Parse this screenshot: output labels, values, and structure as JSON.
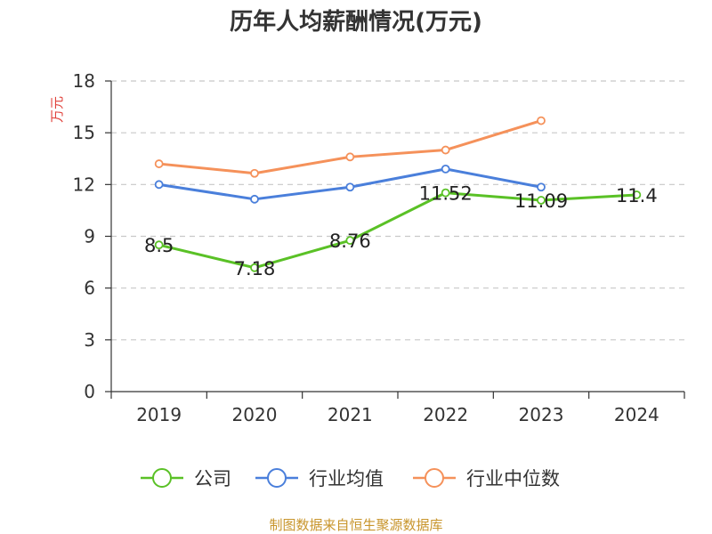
{
  "chart_data": {
    "type": "line",
    "title": "历年人均薪酬情况(万元)",
    "ylabel": "万元",
    "xlabel": "",
    "categories": [
      "2019",
      "2020",
      "2021",
      "2022",
      "2023",
      "2024"
    ],
    "yticks": [
      "0",
      "3",
      "6",
      "9",
      "12",
      "15",
      "18"
    ],
    "ylim": [
      0,
      18
    ],
    "grid": true,
    "legend_position": "bottom",
    "series": [
      {
        "name": "公司",
        "color": "#5ac126",
        "values": [
          8.5,
          7.18,
          8.76,
          11.52,
          11.09,
          11.4
        ],
        "labels": [
          "8.5",
          "7.18",
          "8.76",
          "11.52",
          "11.09",
          "11.4"
        ]
      },
      {
        "name": "行业均值",
        "color": "#4a7fdb",
        "values": [
          12.0,
          11.15,
          11.85,
          12.9,
          11.85,
          null
        ]
      },
      {
        "name": "行业中位数",
        "color": "#f5915a",
        "values": [
          13.2,
          12.65,
          13.6,
          14.0,
          15.7,
          null
        ]
      }
    ]
  },
  "source": "制图数据来自恒生聚源数据库"
}
